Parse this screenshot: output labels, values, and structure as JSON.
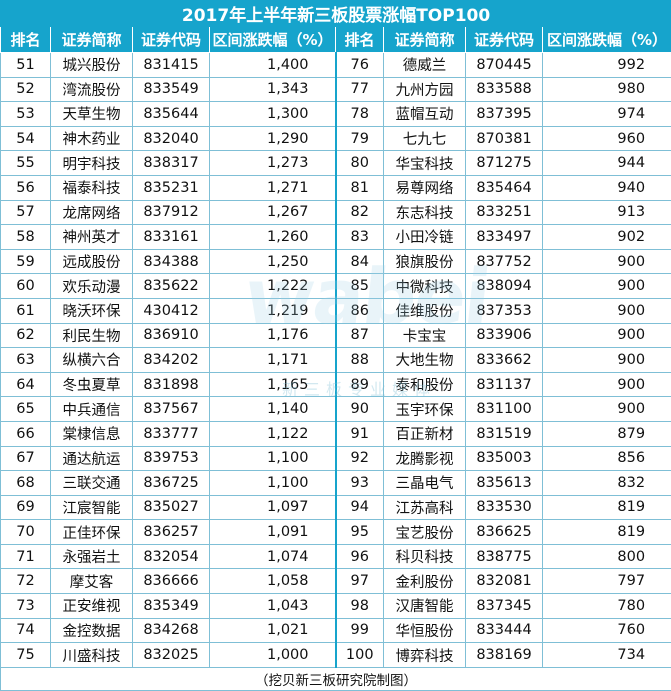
{
  "title": "2017年上半年新三板股票涨幅TOP100",
  "headers": [
    "排名",
    "证券简称",
    "证券代码",
    "区间涨跌幅（%）",
    "排名",
    "证券简称",
    "证券代码",
    "区间涨跌幅（%）"
  ],
  "rows_left": [
    [
      "51",
      "城兴股份",
      "831415",
      "1,400"
    ],
    [
      "52",
      "湾流股份",
      "833549",
      "1,343"
    ],
    [
      "53",
      "天草生物",
      "835644",
      "1,300"
    ],
    [
      "54",
      "神木药业",
      "832040",
      "1,290"
    ],
    [
      "55",
      "明宇科技",
      "838317",
      "1,273"
    ],
    [
      "56",
      "福泰科技",
      "835231",
      "1,271"
    ],
    [
      "57",
      "龙席网络",
      "837912",
      "1,267"
    ],
    [
      "58",
      "神州英才",
      "833161",
      "1,260"
    ],
    [
      "59",
      "远成股份",
      "834388",
      "1,250"
    ],
    [
      "60",
      "欢乐动漫",
      "835622",
      "1,222"
    ],
    [
      "61",
      "晓沃环保",
      "430412",
      "1,219"
    ],
    [
      "62",
      "利民生物",
      "836910",
      "1,176"
    ],
    [
      "63",
      "纵横六合",
      "834202",
      "1,171"
    ],
    [
      "64",
      "冬虫夏草",
      "831898",
      "1,165"
    ],
    [
      "65",
      "中兵通信",
      "837567",
      "1,140"
    ],
    [
      "66",
      "棠棣信息",
      "833777",
      "1,122"
    ],
    [
      "67",
      "通达航运",
      "839753",
      "1,100"
    ],
    [
      "68",
      "三联交通",
      "836725",
      "1,100"
    ],
    [
      "69",
      "江宸智能",
      "835027",
      "1,097"
    ],
    [
      "70",
      "正佳环保",
      "836257",
      "1,091"
    ],
    [
      "71",
      "永强岩土",
      "832054",
      "1,074"
    ],
    [
      "72",
      "摩艾客",
      "836666",
      "1,058"
    ],
    [
      "73",
      "正安维视",
      "835349",
      "1,043"
    ],
    [
      "74",
      "金控数据",
      "834268",
      "1,021"
    ],
    [
      "75",
      "川盛科技",
      "832025",
      "1,000"
    ]
  ],
  "rows_right": [
    [
      "76",
      "德威兰",
      "870445",
      "992"
    ],
    [
      "77",
      "九州方园",
      "833588",
      "980"
    ],
    [
      "78",
      "蓝帽互动",
      "837395",
      "974"
    ],
    [
      "79",
      "七九七",
      "870381",
      "960"
    ],
    [
      "80",
      "华宝科技",
      "871275",
      "944"
    ],
    [
      "81",
      "易尊网络",
      "835464",
      "940"
    ],
    [
      "82",
      "东志科技",
      "833251",
      "913"
    ],
    [
      "83",
      "小田冷链",
      "833497",
      "902"
    ],
    [
      "84",
      "狼旗股份",
      "837752",
      "900"
    ],
    [
      "85",
      "中微科技",
      "838094",
      "900"
    ],
    [
      "86",
      "佳维股份",
      "837353",
      "900"
    ],
    [
      "87",
      "卡宝宝",
      "833906",
      "900"
    ],
    [
      "88",
      "大地生物",
      "833662",
      "900"
    ],
    [
      "89",
      "泰和股份",
      "831137",
      "900"
    ],
    [
      "90",
      "玉宇环保",
      "831100",
      "900"
    ],
    [
      "91",
      "百正新材",
      "831519",
      "879"
    ],
    [
      "92",
      "龙腾影视",
      "835003",
      "856"
    ],
    [
      "93",
      "三晶电气",
      "835613",
      "832"
    ],
    [
      "94",
      "江苏高科",
      "833530",
      "819"
    ],
    [
      "95",
      "宝艺股份",
      "836625",
      "819"
    ],
    [
      "96",
      "科贝科技",
      "838775",
      "800"
    ],
    [
      "97",
      "金利股份",
      "832081",
      "797"
    ],
    [
      "98",
      "汉唐智能",
      "837345",
      "780"
    ],
    [
      "99",
      "华恒股份",
      "833444",
      "760"
    ],
    [
      "100",
      "博弈科技",
      "838169",
      "734"
    ]
  ],
  "footer": "（挖贝新三板研究院制图）",
  "watermark": {
    "brand": "wabei",
    "tagline": "新三板专业媒体"
  },
  "colors": {
    "header_bg": "#16a4cc",
    "border": "#7fbfd6"
  }
}
